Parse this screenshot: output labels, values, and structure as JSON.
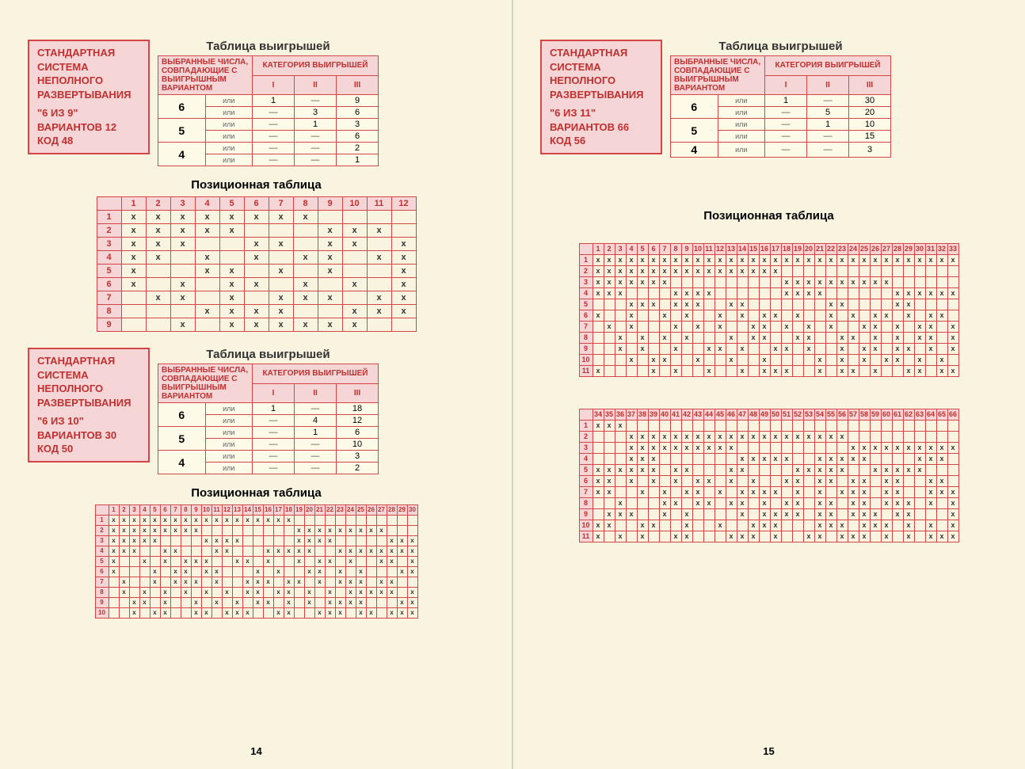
{
  "leftPage": {
    "pageNum": "14",
    "system1": {
      "box": [
        "СТАНДАРТНАЯ",
        "СИСТЕМА",
        "НЕПОЛНОГО",
        "РАЗВЕРТЫВАНИЯ",
        "",
        "\"6 ИЗ 9\"",
        "ВАРИАНТОВ 12",
        "КОД 48"
      ],
      "winTitle": "Таблица выигрышей",
      "header1": "ВЫБРАННЫЕ ЧИСЛА, СОВПАДАЮЩИЕ С ВЫИГРЫШНЫМ ВАРИАНТОМ",
      "header2": "КАТЕГОРИЯ ВЫИГРЫШЕЙ",
      "cats": [
        "I",
        "II",
        "III"
      ],
      "ili": "или",
      "rows": [
        {
          "n": "6",
          "lines": [
            [
              "1",
              "—",
              "9"
            ],
            [
              "—",
              "3",
              "6"
            ]
          ]
        },
        {
          "n": "5",
          "lines": [
            [
              "—",
              "1",
              "3"
            ],
            [
              "—",
              "—",
              "6"
            ]
          ]
        },
        {
          "n": "4",
          "lines": [
            [
              "—",
              "—",
              "2"
            ],
            [
              "—",
              "—",
              "1"
            ]
          ]
        }
      ],
      "posTitle": "Позиционная таблица",
      "posCols": 12,
      "posRows": 9,
      "posData": [
        [
          1,
          1,
          1,
          1,
          1,
          1,
          1,
          1,
          0,
          0,
          0,
          0
        ],
        [
          1,
          1,
          1,
          1,
          1,
          0,
          0,
          0,
          1,
          1,
          1,
          0
        ],
        [
          1,
          1,
          1,
          0,
          0,
          1,
          1,
          0,
          1,
          1,
          0,
          1
        ],
        [
          1,
          1,
          0,
          1,
          0,
          1,
          0,
          1,
          1,
          0,
          1,
          1
        ],
        [
          1,
          0,
          0,
          1,
          1,
          0,
          1,
          0,
          1,
          0,
          0,
          1
        ],
        [
          1,
          0,
          1,
          0,
          1,
          1,
          0,
          1,
          0,
          1,
          0,
          1
        ],
        [
          0,
          1,
          1,
          0,
          1,
          0,
          1,
          1,
          1,
          0,
          1,
          1
        ],
        [
          0,
          0,
          0,
          1,
          1,
          1,
          1,
          0,
          0,
          1,
          1,
          1
        ],
        [
          0,
          0,
          1,
          0,
          1,
          1,
          1,
          1,
          1,
          1,
          0,
          0
        ]
      ]
    },
    "system2": {
      "box": [
        "СТАНДАРТНАЯ",
        "СИСТЕМА",
        "НЕПОЛНОГО",
        "РАЗВЕРТЫВАНИЯ",
        "",
        "\"6 ИЗ 10\"",
        "ВАРИАНТОВ 30",
        "КОД 50"
      ],
      "winTitle": "Таблица выигрышей",
      "rows": [
        {
          "n": "6",
          "lines": [
            [
              "1",
              "—",
              "18"
            ],
            [
              "—",
              "4",
              "12"
            ]
          ]
        },
        {
          "n": "5",
          "lines": [
            [
              "—",
              "1",
              "6"
            ],
            [
              "—",
              "—",
              "10"
            ]
          ]
        },
        {
          "n": "4",
          "lines": [
            [
              "—",
              "—",
              "3"
            ],
            [
              "—",
              "—",
              "2"
            ]
          ]
        }
      ],
      "posTitle": "Позиционная таблица",
      "posCols": 30,
      "posRows": 10,
      "posData": [
        [
          1,
          1,
          1,
          1,
          1,
          1,
          1,
          1,
          1,
          1,
          1,
          1,
          1,
          1,
          1,
          1,
          1,
          1,
          0,
          0,
          0,
          0,
          0,
          0,
          0,
          0,
          0,
          0,
          0,
          0
        ],
        [
          1,
          1,
          1,
          1,
          1,
          1,
          1,
          1,
          1,
          0,
          0,
          0,
          0,
          0,
          0,
          0,
          0,
          0,
          1,
          1,
          1,
          1,
          1,
          1,
          1,
          1,
          1,
          0,
          0,
          0
        ],
        [
          1,
          1,
          1,
          1,
          1,
          0,
          0,
          0,
          0,
          1,
          1,
          1,
          1,
          0,
          0,
          0,
          0,
          0,
          1,
          1,
          1,
          1,
          0,
          0,
          0,
          0,
          0,
          1,
          1,
          1
        ],
        [
          1,
          1,
          1,
          0,
          0,
          1,
          1,
          0,
          0,
          0,
          1,
          1,
          0,
          0,
          0,
          1,
          1,
          1,
          1,
          1,
          0,
          0,
          1,
          1,
          1,
          1,
          1,
          1,
          1,
          1
        ],
        [
          1,
          0,
          0,
          1,
          0,
          1,
          0,
          1,
          1,
          1,
          0,
          0,
          1,
          1,
          0,
          1,
          0,
          0,
          1,
          0,
          1,
          1,
          0,
          1,
          0,
          0,
          1,
          1,
          0,
          1
        ],
        [
          1,
          0,
          0,
          0,
          1,
          0,
          1,
          1,
          0,
          1,
          1,
          0,
          0,
          0,
          1,
          0,
          1,
          0,
          0,
          1,
          1,
          0,
          1,
          0,
          1,
          0,
          0,
          0,
          1,
          1
        ],
        [
          0,
          1,
          0,
          0,
          1,
          0,
          1,
          1,
          1,
          0,
          1,
          0,
          0,
          1,
          1,
          1,
          0,
          1,
          1,
          0,
          1,
          0,
          1,
          1,
          1,
          0,
          1,
          1,
          0,
          0
        ],
        [
          0,
          1,
          0,
          1,
          0,
          1,
          0,
          1,
          0,
          1,
          0,
          1,
          0,
          1,
          1,
          0,
          1,
          1,
          0,
          1,
          0,
          1,
          0,
          1,
          1,
          1,
          1,
          1,
          0,
          1
        ],
        [
          0,
          0,
          1,
          1,
          0,
          1,
          0,
          0,
          1,
          0,
          1,
          0,
          1,
          0,
          1,
          1,
          0,
          1,
          0,
          1,
          0,
          1,
          1,
          1,
          1,
          0,
          0,
          0,
          1,
          1
        ],
        [
          0,
          0,
          1,
          0,
          1,
          1,
          0,
          0,
          1,
          1,
          0,
          1,
          1,
          1,
          0,
          0,
          1,
          1,
          0,
          0,
          1,
          1,
          1,
          0,
          1,
          1,
          0,
          1,
          1,
          1
        ]
      ]
    }
  },
  "rightPage": {
    "pageNum": "15",
    "system": {
      "box": [
        "СТАНДАРТНАЯ",
        "СИСТЕМА",
        "НЕПОЛНОГО",
        "РАЗВЕРТЫВАНИЯ",
        "",
        "\"6 ИЗ 11\"",
        "ВАРИАНТОВ 66",
        "КОД 56"
      ],
      "winTitle": "Таблица выигрышей",
      "rows": [
        {
          "n": "6",
          "lines": [
            [
              "1",
              "—",
              "30"
            ],
            [
              "—",
              "5",
              "20"
            ]
          ]
        },
        {
          "n": "5",
          "lines": [
            [
              "—",
              "1",
              "10"
            ],
            [
              "—",
              "—",
              "15"
            ]
          ]
        },
        {
          "n": "4",
          "lines": [
            [
              "—",
              "—",
              "3"
            ]
          ]
        }
      ],
      "posTitle": "Позиционная таблица",
      "posCols1": 33,
      "posRows": 11,
      "posData1": [
        [
          1,
          1,
          1,
          1,
          1,
          1,
          1,
          1,
          1,
          1,
          1,
          1,
          1,
          1,
          1,
          1,
          1,
          1,
          1,
          1,
          1,
          1,
          1,
          1,
          1,
          1,
          1,
          1,
          1,
          1,
          1,
          1,
          1
        ],
        [
          1,
          1,
          1,
          1,
          1,
          1,
          1,
          1,
          1,
          1,
          1,
          1,
          1,
          1,
          1,
          1,
          1,
          0,
          0,
          0,
          0,
          0,
          0,
          0,
          0,
          0,
          0,
          0,
          0,
          0,
          0,
          0,
          0
        ],
        [
          1,
          1,
          1,
          1,
          1,
          1,
          1,
          0,
          0,
          0,
          0,
          0,
          0,
          0,
          0,
          0,
          0,
          1,
          1,
          1,
          1,
          1,
          1,
          1,
          1,
          1,
          1,
          0,
          0,
          0,
          0,
          0,
          0
        ],
        [
          1,
          1,
          1,
          0,
          0,
          0,
          0,
          1,
          1,
          1,
          1,
          0,
          0,
          0,
          0,
          0,
          0,
          1,
          1,
          1,
          1,
          0,
          0,
          0,
          0,
          0,
          0,
          1,
          1,
          1,
          1,
          1,
          1
        ],
        [
          0,
          0,
          0,
          1,
          1,
          1,
          0,
          1,
          1,
          1,
          0,
          0,
          1,
          1,
          0,
          0,
          0,
          0,
          0,
          0,
          0,
          1,
          1,
          0,
          0,
          0,
          0,
          1,
          1,
          0,
          0,
          0,
          0
        ],
        [
          1,
          0,
          0,
          1,
          0,
          0,
          1,
          0,
          1,
          0,
          0,
          1,
          0,
          1,
          0,
          1,
          1,
          0,
          1,
          0,
          0,
          1,
          0,
          1,
          0,
          1,
          1,
          0,
          1,
          0,
          1,
          1,
          0
        ],
        [
          0,
          1,
          0,
          1,
          0,
          0,
          0,
          1,
          0,
          1,
          0,
          1,
          0,
          0,
          1,
          1,
          0,
          1,
          0,
          1,
          0,
          1,
          0,
          0,
          1,
          1,
          0,
          1,
          0,
          1,
          1,
          0,
          1
        ],
        [
          0,
          0,
          1,
          0,
          1,
          0,
          1,
          0,
          1,
          0,
          0,
          0,
          1,
          0,
          1,
          1,
          0,
          0,
          1,
          1,
          0,
          0,
          1,
          1,
          0,
          1,
          0,
          1,
          0,
          1,
          1,
          0,
          1
        ],
        [
          0,
          0,
          1,
          0,
          1,
          0,
          0,
          1,
          0,
          0,
          1,
          1,
          0,
          1,
          0,
          0,
          1,
          1,
          0,
          1,
          0,
          0,
          1,
          0,
          1,
          1,
          0,
          1,
          1,
          0,
          1,
          0,
          1
        ],
        [
          0,
          0,
          0,
          1,
          0,
          1,
          1,
          0,
          0,
          1,
          0,
          0,
          1,
          0,
          0,
          1,
          0,
          0,
          0,
          0,
          1,
          0,
          1,
          0,
          1,
          0,
          1,
          1,
          0,
          1,
          0,
          1,
          0
        ],
        [
          1,
          0,
          0,
          0,
          0,
          1,
          0,
          1,
          0,
          0,
          1,
          0,
          0,
          1,
          0,
          1,
          1,
          1,
          0,
          0,
          1,
          0,
          1,
          1,
          0,
          1,
          0,
          0,
          1,
          1,
          0,
          1,
          1
        ]
      ],
      "posCols2Start": 34,
      "posCols2End": 66,
      "posData2": [
        [
          1,
          1,
          1,
          0,
          0,
          0,
          0,
          0,
          0,
          0,
          0,
          0,
          0,
          0,
          0,
          0,
          0,
          0,
          0,
          0,
          0,
          0,
          0,
          0,
          0,
          0,
          0,
          0,
          0,
          0,
          0,
          0,
          0
        ],
        [
          0,
          0,
          0,
          1,
          1,
          1,
          1,
          1,
          1,
          1,
          1,
          1,
          1,
          1,
          1,
          1,
          1,
          1,
          1,
          1,
          1,
          1,
          1,
          0,
          0,
          0,
          0,
          0,
          0,
          0,
          0,
          0,
          0
        ],
        [
          0,
          0,
          0,
          1,
          1,
          1,
          1,
          1,
          1,
          1,
          1,
          1,
          1,
          0,
          0,
          0,
          0,
          0,
          0,
          0,
          0,
          0,
          0,
          1,
          1,
          1,
          1,
          1,
          1,
          1,
          1,
          1,
          1
        ],
        [
          0,
          0,
          0,
          1,
          1,
          1,
          0,
          0,
          0,
          0,
          0,
          0,
          0,
          1,
          1,
          1,
          1,
          1,
          0,
          0,
          1,
          1,
          1,
          1,
          1,
          0,
          0,
          0,
          0,
          1,
          1,
          1,
          0
        ],
        [
          1,
          1,
          1,
          1,
          1,
          1,
          0,
          1,
          1,
          0,
          0,
          0,
          1,
          1,
          0,
          0,
          0,
          0,
          1,
          1,
          1,
          1,
          1,
          0,
          0,
          1,
          1,
          1,
          1,
          1,
          0,
          0,
          0
        ],
        [
          1,
          1,
          0,
          1,
          0,
          1,
          0,
          1,
          0,
          1,
          1,
          0,
          1,
          0,
          1,
          0,
          0,
          1,
          1,
          0,
          1,
          1,
          0,
          1,
          1,
          0,
          1,
          1,
          0,
          0,
          1,
          1,
          0
        ],
        [
          1,
          1,
          0,
          0,
          1,
          0,
          1,
          0,
          1,
          1,
          0,
          1,
          0,
          1,
          1,
          1,
          1,
          0,
          1,
          0,
          1,
          0,
          1,
          1,
          1,
          0,
          1,
          1,
          0,
          0,
          1,
          1,
          1
        ],
        [
          0,
          0,
          1,
          0,
          0,
          0,
          1,
          1,
          0,
          1,
          1,
          0,
          1,
          1,
          0,
          1,
          0,
          1,
          1,
          0,
          1,
          1,
          0,
          1,
          1,
          0,
          1,
          1,
          1,
          0,
          1,
          0,
          1
        ],
        [
          0,
          1,
          1,
          1,
          0,
          0,
          1,
          0,
          1,
          0,
          0,
          0,
          0,
          1,
          0,
          1,
          1,
          1,
          1,
          0,
          1,
          1,
          0,
          1,
          1,
          1,
          0,
          1,
          1,
          0,
          0,
          0,
          1
        ],
        [
          1,
          1,
          0,
          0,
          1,
          1,
          0,
          0,
          1,
          0,
          0,
          1,
          0,
          0,
          1,
          1,
          1,
          0,
          0,
          0,
          1,
          1,
          1,
          0,
          1,
          1,
          1,
          0,
          1,
          0,
          1,
          0,
          1
        ],
        [
          1,
          0,
          1,
          0,
          1,
          0,
          0,
          1,
          1,
          0,
          0,
          0,
          1,
          1,
          1,
          0,
          1,
          0,
          0,
          1,
          1,
          0,
          1,
          1,
          1,
          0,
          1,
          0,
          1,
          0,
          1,
          1,
          1
        ]
      ]
    }
  },
  "colors": {
    "border": "#d64545",
    "boxBg": "#f5d5d5",
    "boxText": "#c03030",
    "pageBg": "#f8f4e0"
  }
}
